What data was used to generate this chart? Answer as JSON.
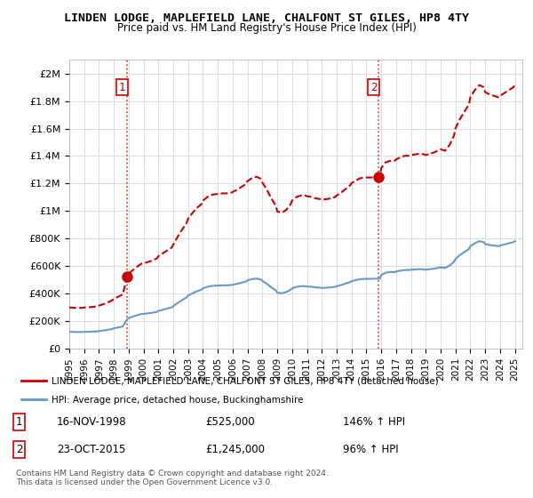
{
  "title": "LINDEN LODGE, MAPLEFIELD LANE, CHALFONT ST GILES, HP8 4TY",
  "subtitle": "Price paid vs. HM Land Registry's House Price Index (HPI)",
  "sale1_date": "16-NOV-1998",
  "sale1_price": 525000,
  "sale1_hpi": "146% ↑ HPI",
  "sale2_date": "23-OCT-2015",
  "sale2_price": 1245000,
  "sale2_hpi": "96% ↑ HPI",
  "legend_line1": "LINDEN LODGE, MAPLEFIELD LANE, CHALFONT ST GILES, HP8 4TY (detached house)",
  "legend_line2": "HPI: Average price, detached house, Buckinghamshire",
  "footer": "Contains HM Land Registry data © Crown copyright and database right 2024.\nThis data is licensed under the Open Government Licence v3.0.",
  "red_color": "#cc0000",
  "blue_color": "#6699cc",
  "dashed_red_color": "#cc0000",
  "ylim": [
    0,
    2100000
  ],
  "yticks": [
    0,
    200000,
    400000,
    600000,
    800000,
    1000000,
    1200000,
    1400000,
    1600000,
    1800000,
    2000000
  ],
  "xlim_start": 1995.0,
  "xlim_end": 2025.5
}
